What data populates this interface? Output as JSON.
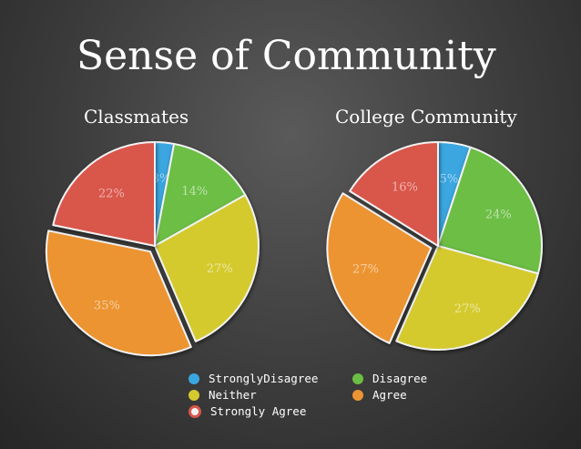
{
  "title": "Sense of Community",
  "colors": {
    "Strongly Disagree": "#3aa6e0",
    "Disagree": "#6cbe45",
    "Neither": "#d4ca2e",
    "Agree": "#ec9433",
    "Strongly Agree": "#d9564b"
  },
  "legend": [
    {
      "label": "StronglyDisagree",
      "key": "Strongly Disagree"
    },
    {
      "label": "Disagree",
      "key": "Disagree"
    },
    {
      "label": "Neither",
      "key": "Neither"
    },
    {
      "label": "Agree",
      "key": "Agree"
    },
    {
      "label": "Strongly Agree",
      "key": "Strongly Agree"
    }
  ],
  "chart_data": [
    {
      "type": "pie",
      "title": "Classmates",
      "categories": [
        "Strongly Disagree",
        "Disagree",
        "Neither",
        "Agree",
        "Strongly Agree"
      ],
      "values": [
        3,
        14,
        27,
        35,
        22
      ],
      "labels": [
        "3%",
        "14%",
        "27%",
        "35%",
        "22%"
      ],
      "exploded": "Agree"
    },
    {
      "type": "pie",
      "title": "College Community",
      "categories": [
        "Strongly Disagree",
        "Disagree",
        "Neither",
        "Agree",
        "Strongly Agree"
      ],
      "values": [
        5,
        24,
        27,
        27,
        16
      ],
      "labels": [
        "5%",
        "24%",
        "27%",
        "27%",
        "16%"
      ],
      "exploded": "Agree"
    }
  ]
}
